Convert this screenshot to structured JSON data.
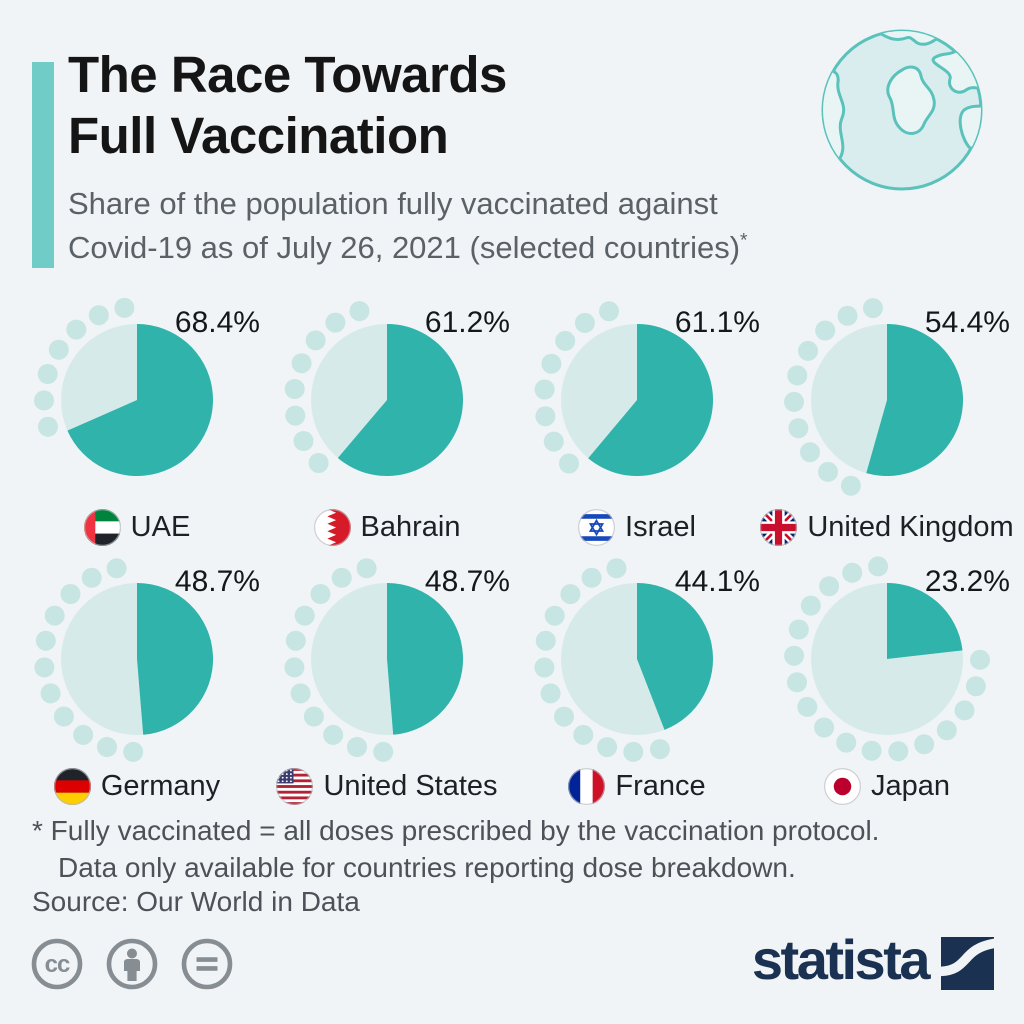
{
  "header": {
    "title_line1": "The Race Towards",
    "title_line2": "Full Vaccination",
    "subtitle_line1": "Share of the population fully vaccinated against",
    "subtitle_line2": "Covid-19 as of July 26, 2021 (selected countries)",
    "footnote_marker": "*"
  },
  "chart_data": {
    "type": "pie",
    "title": "The Race Towards Full Vaccination",
    "subtitle": "Share of the population fully vaccinated against Covid-19 as of July 26, 2021 (selected countries)*",
    "unit": "% of population fully vaccinated",
    "date": "July 26, 2021",
    "layout": {
      "grid": "4x2",
      "fill_start": "12 o'clock, clockwise",
      "value_label_position": "top-right of each pie",
      "decorative_dots": "trace the unfilled arc outside each pie"
    },
    "series": [
      {
        "country": "UAE",
        "value": 68.4,
        "label": "68.4%",
        "flag": "uae"
      },
      {
        "country": "Bahrain",
        "value": 61.2,
        "label": "61.2%",
        "flag": "bahrain"
      },
      {
        "country": "Israel",
        "value": 61.1,
        "label": "61.1%",
        "flag": "israel"
      },
      {
        "country": "United Kingdom",
        "value": 54.4,
        "label": "54.4%",
        "flag": "uk"
      },
      {
        "country": "Germany",
        "value": 48.7,
        "label": "48.7%",
        "flag": "germany"
      },
      {
        "country": "United States",
        "value": 48.7,
        "label": "48.7%",
        "flag": "us"
      },
      {
        "country": "France",
        "value": 44.1,
        "label": "44.1%",
        "flag": "france"
      },
      {
        "country": "Japan",
        "value": 23.2,
        "label": "23.2%",
        "flag": "japan"
      }
    ],
    "colors": {
      "filled": "#2fb3ab",
      "remainder": "#d6ebe9",
      "dots": "#c7e5e2",
      "accent_bar": "#6fccc7",
      "background": "#f0f4f6",
      "brand_navy": "#1b3152"
    }
  },
  "footer": {
    "footnote_line1": "* Fully vaccinated = all doses prescribed by the vaccination protocol.",
    "footnote_line2": "Data only available for countries reporting dose breakdown.",
    "source": "Source: Our World in Data",
    "license_icons": [
      "cc",
      "attribution",
      "no-derivatives"
    ],
    "brand": "statista"
  }
}
